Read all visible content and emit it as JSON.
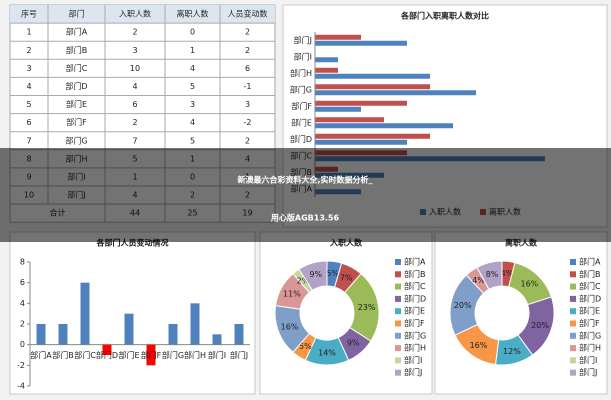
{
  "table": {
    "header": [
      "序号",
      "部门",
      "入职人数",
      "离职人数",
      "人员变动数"
    ],
    "rows": [
      [
        1,
        "部门A",
        2,
        0,
        2
      ],
      [
        2,
        "部门B",
        3,
        1,
        2
      ],
      [
        3,
        "部门C",
        10,
        4,
        6
      ],
      [
        4,
        "部门D",
        4,
        5,
        -1
      ],
      [
        5,
        "部门E",
        6,
        3,
        3
      ],
      [
        6,
        "部门F",
        2,
        4,
        -2
      ],
      [
        7,
        "部门G",
        7,
        5,
        2
      ],
      [
        8,
        "部门H",
        5,
        1,
        4
      ],
      [
        9,
        "部门I",
        1,
        0,
        1
      ],
      [
        10,
        "部门J",
        4,
        2,
        2
      ]
    ],
    "total": [
      "合计",
      44,
      25,
      19
    ]
  },
  "chart_data": [
    {
      "type": "hbar",
      "title": "各部门入职离职人数对比",
      "categories": [
        "部门A",
        "部门B",
        "部门C",
        "部门D",
        "部门E",
        "部门F",
        "部门G",
        "部门H",
        "部门I",
        "部门J"
      ],
      "series": [
        {
          "name": "入职人数",
          "color": "#4f81bd",
          "values": [
            2,
            3,
            10,
            4,
            6,
            2,
            7,
            5,
            1,
            4
          ]
        },
        {
          "name": "离职人数",
          "color": "#c0504d",
          "values": [
            0,
            1,
            4,
            5,
            3,
            4,
            5,
            1,
            0,
            2
          ]
        }
      ],
      "xlim": [
        0,
        12
      ]
    },
    {
      "type": "bar",
      "title": "各部门人员变动情况",
      "categories": [
        "部门A",
        "部门B",
        "部门C",
        "部门D",
        "部门E",
        "部门F",
        "部门G",
        "部门H",
        "部门I",
        "部门J"
      ],
      "values": [
        2,
        2,
        6,
        -1,
        3,
        -2,
        2,
        4,
        1,
        2
      ],
      "color": "#4f81bd",
      "negative_color": "#ff0000",
      "ylim": [
        -4,
        8
      ],
      "yticks": [
        -4,
        -2,
        0,
        2,
        4,
        6,
        8
      ]
    },
    {
      "type": "donut",
      "title": "入职人数",
      "categories": [
        "部门A",
        "部门B",
        "部门C",
        "部门D",
        "部门E",
        "部门F",
        "部门G",
        "部门H",
        "部门I",
        "部门J"
      ],
      "values": [
        2,
        3,
        10,
        4,
        6,
        2,
        7,
        5,
        1,
        4
      ],
      "value_labels": [
        "5%",
        "7%",
        "23%",
        "9%",
        "14%",
        "5%",
        "16%",
        "11%",
        "2%",
        "9%"
      ],
      "colors": [
        "#4f81bd",
        "#c0504d",
        "#9bbb59",
        "#8064a2",
        "#4bacc6",
        "#f79646",
        "#7f9ec9",
        "#d99694",
        "#c3d69b",
        "#b3a2c7"
      ]
    },
    {
      "type": "donut",
      "title": "离职人数",
      "categories": [
        "部门A",
        "部门B",
        "部门C",
        "部门D",
        "部门E",
        "部门F",
        "部门G",
        "部门H",
        "部门I",
        "部门J"
      ],
      "values": [
        0,
        1,
        4,
        5,
        3,
        4,
        5,
        1,
        0,
        2
      ],
      "value_labels": [
        null,
        "4%",
        "16%",
        "20%",
        "12%",
        "16%",
        "20%",
        "4%",
        null,
        "8%"
      ],
      "colors": [
        "#4f81bd",
        "#c0504d",
        "#9bbb59",
        "#8064a2",
        "#4bacc6",
        "#f79646",
        "#7f9ec9",
        "#d99694",
        "#c3d69b",
        "#b3a2c7"
      ]
    }
  ],
  "banner": {
    "lines": [
      "新澳最六合彩资料大全,实时数据分析_",
      "用心版AGB13.56"
    ]
  }
}
